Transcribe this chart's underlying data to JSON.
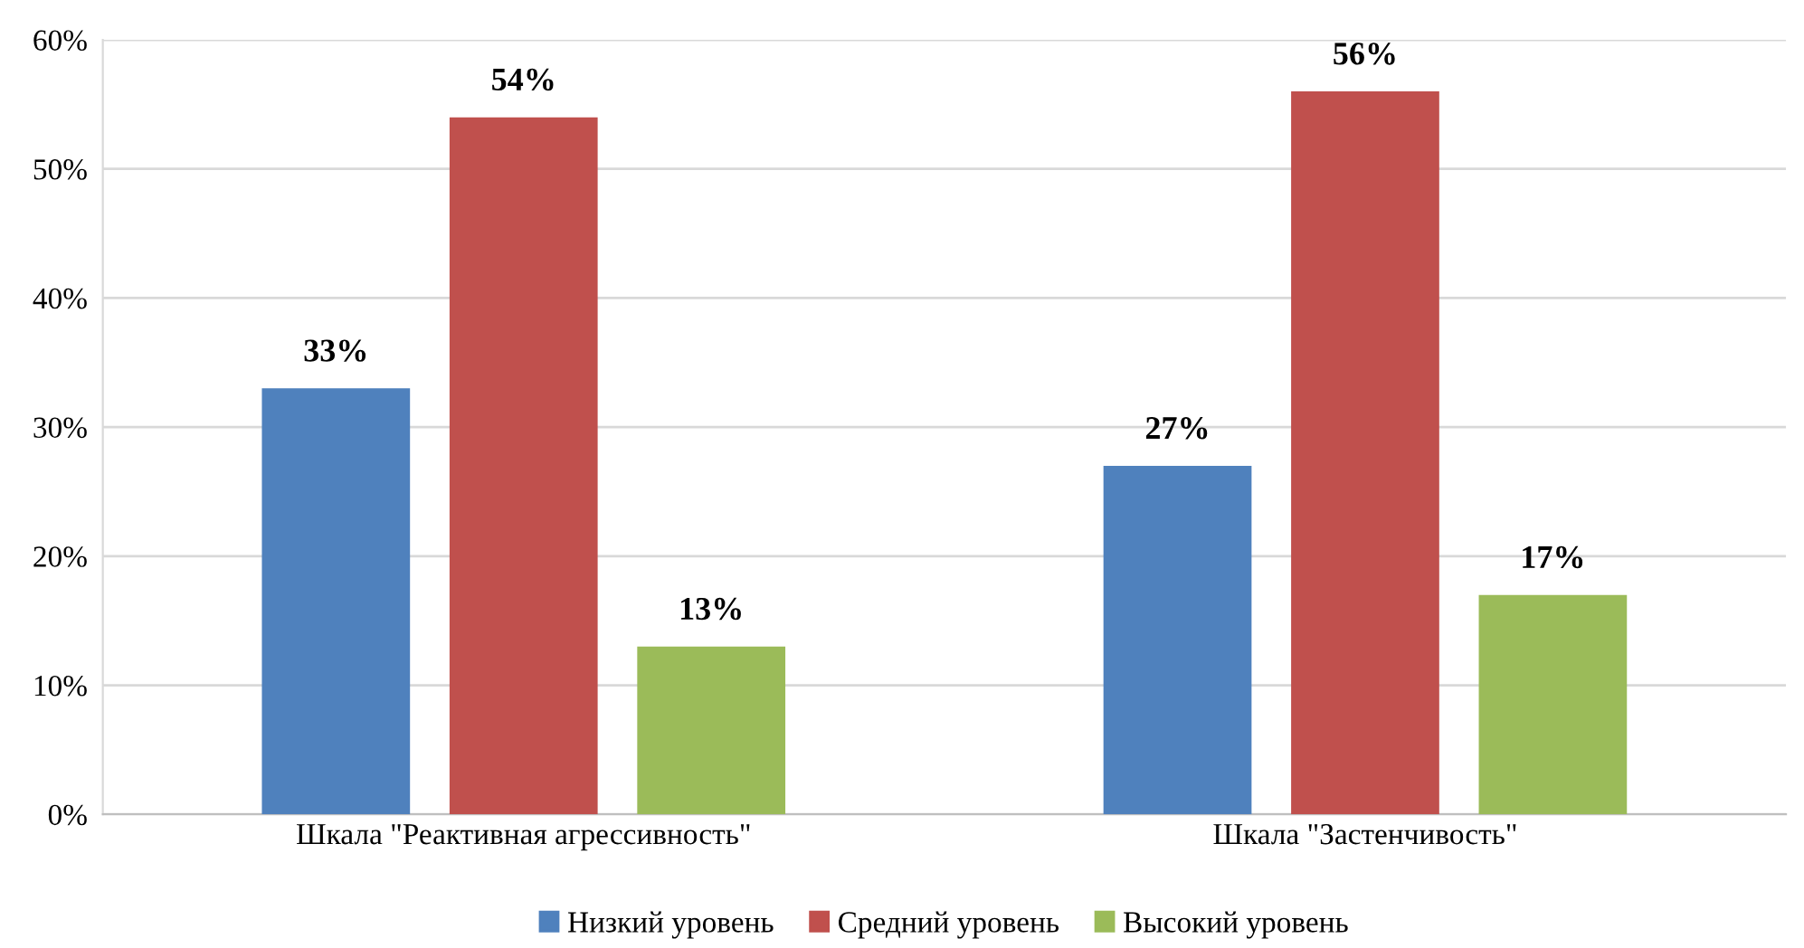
{
  "chart_data": {
    "type": "bar",
    "categories": [
      "Шкала \"Реактивная агрессивность\"",
      "Шкала \"Застенчивость\""
    ],
    "series": [
      {
        "name": "Низкий уровень",
        "color": "#4f81bd",
        "values": [
          33,
          27
        ],
        "value_labels": [
          "33%",
          "27%"
        ]
      },
      {
        "name": "Средний уровень",
        "color": "#c0504d",
        "values": [
          54,
          56
        ],
        "value_labels": [
          "54%",
          "56%"
        ]
      },
      {
        "name": "Высокий уровень",
        "color": "#9bbb59",
        "values": [
          13,
          17
        ],
        "value_labels": [
          "13%",
          "17%"
        ]
      }
    ],
    "ylim": [
      0,
      60
    ],
    "yticks": [
      {
        "value": 0,
        "label": "0%"
      },
      {
        "value": 10,
        "label": "10%"
      },
      {
        "value": 20,
        "label": "20%"
      },
      {
        "value": 30,
        "label": "30%"
      },
      {
        "value": 40,
        "label": "40%"
      },
      {
        "value": 50,
        "label": "50%"
      },
      {
        "value": 60,
        "label": "60%"
      }
    ],
    "grid": "y",
    "legend": "bottom"
  }
}
